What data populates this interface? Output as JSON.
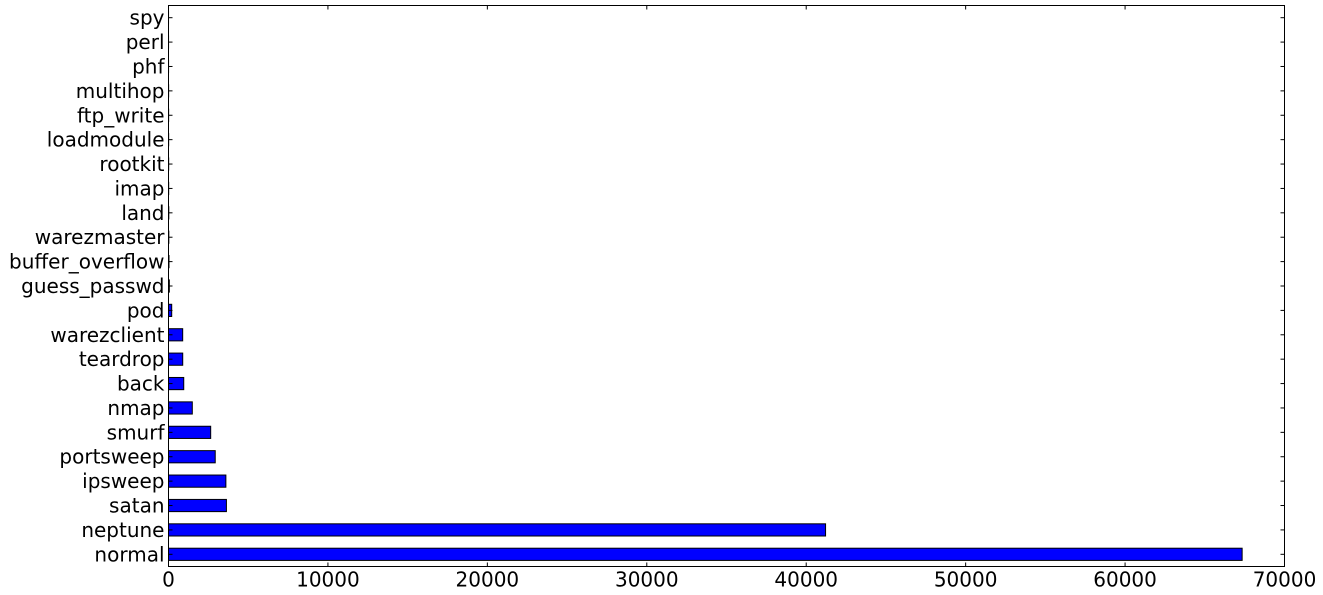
{
  "chart_data": {
    "type": "bar",
    "orientation": "horizontal",
    "title": "",
    "xlabel": "",
    "ylabel": "",
    "categories": [
      "normal",
      "neptune",
      "satan",
      "ipsweep",
      "portsweep",
      "smurf",
      "nmap",
      "back",
      "teardrop",
      "warezclient",
      "pod",
      "guess_passwd",
      "buffer_overflow",
      "warezmaster",
      "land",
      "imap",
      "rootkit",
      "loadmodule",
      "ftp_write",
      "multihop",
      "phf",
      "perl",
      "spy"
    ],
    "values": [
      67343,
      41214,
      3633,
      3599,
      2931,
      2646,
      1493,
      956,
      892,
      890,
      201,
      53,
      30,
      20,
      18,
      11,
      10,
      9,
      8,
      7,
      4,
      3,
      2
    ],
    "xlim": [
      0,
      70000
    ],
    "xticks": [
      0,
      10000,
      20000,
      30000,
      40000,
      50000,
      60000,
      70000
    ],
    "xtick_labels": [
      "0",
      "10000",
      "20000",
      "30000",
      "40000",
      "50000",
      "60000",
      "70000"
    ],
    "grid": false,
    "legend": "none",
    "bar_color": "#0000ff",
    "bar_edge_color": "#000000"
  }
}
